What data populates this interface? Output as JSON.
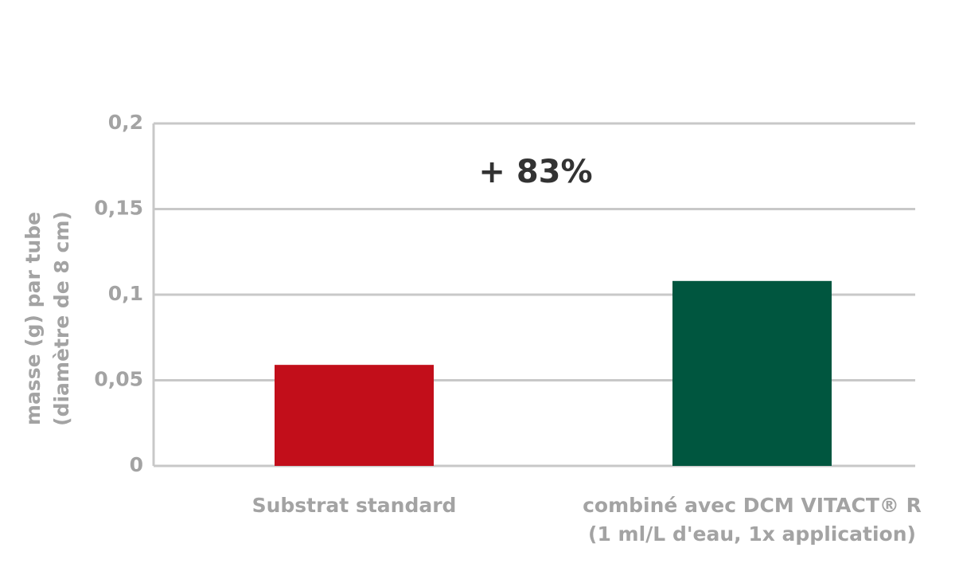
{
  "chart_data": {
    "type": "bar",
    "y_label": "masse (g) par tube\n(diamètre de 8 cm)",
    "annotation": "+ 83%",
    "categories": [
      "Substrat standard",
      "combiné avec DCM VITACT® R\n(1 ml/L d'eau, 1x application)"
    ],
    "values": [
      0.059,
      0.108
    ],
    "colors": [
      "#c20e1a",
      "#00563f"
    ],
    "ylim": [
      0,
      0.2
    ],
    "yticks": [
      0,
      {
        "value": 0.05,
        "label": "0,05"
      },
      {
        "value": 0.1,
        "label": "0,1"
      },
      {
        "value": 0.15,
        "label": "0,15"
      },
      {
        "value": 0.2,
        "label": "0,2"
      }
    ],
    "grid": true
  }
}
